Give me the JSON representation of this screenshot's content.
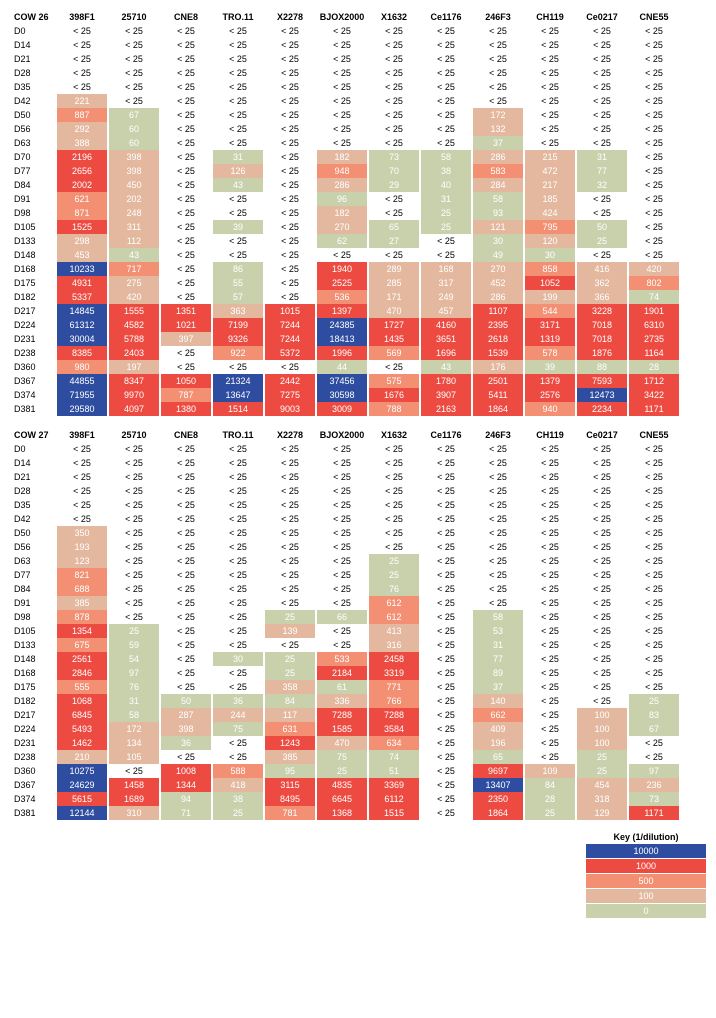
{
  "colors": {
    "band_10000": "#2e4da0",
    "band_1000": "#ed4b42",
    "band_500": "#f39074",
    "band_100": "#e4b89f",
    "band_0": "#c8d1ac",
    "plain_text": "#000000",
    "filled_text": "#ffffff",
    "background": "#ffffff"
  },
  "key": {
    "title": "Key (1/dilution)",
    "entries": [
      {
        "label": "10000",
        "color": "#2e4da0"
      },
      {
        "label": "1000",
        "color": "#ed4b42"
      },
      {
        "label": "500",
        "color": "#f39074"
      },
      {
        "label": "100",
        "color": "#e4b89f"
      },
      {
        "label": "0",
        "color": "#c8d1ac"
      }
    ]
  },
  "columns": [
    "398F1",
    "25710",
    "CNE8",
    "TRO.11",
    "X2278",
    "BJOX2000",
    "X1632",
    "Ce1176",
    "246F3",
    "CH119",
    "Ce0217",
    "CNE55"
  ],
  "tables": [
    {
      "title": "COW 26",
      "rows": [
        {
          "label": "D0",
          "cells": [
            null,
            null,
            null,
            null,
            null,
            null,
            null,
            null,
            null,
            null,
            null,
            null
          ]
        },
        {
          "label": "D14",
          "cells": [
            null,
            null,
            null,
            null,
            null,
            null,
            null,
            null,
            null,
            null,
            null,
            null
          ]
        },
        {
          "label": "D21",
          "cells": [
            null,
            null,
            null,
            null,
            null,
            null,
            null,
            null,
            null,
            null,
            null,
            null
          ]
        },
        {
          "label": "D28",
          "cells": [
            null,
            null,
            null,
            null,
            null,
            null,
            null,
            null,
            null,
            null,
            null,
            null
          ]
        },
        {
          "label": "D35",
          "cells": [
            null,
            null,
            null,
            null,
            null,
            null,
            null,
            null,
            null,
            null,
            null,
            null
          ]
        },
        {
          "label": "D42",
          "cells": [
            221,
            null,
            null,
            null,
            null,
            null,
            null,
            null,
            null,
            null,
            null,
            null
          ]
        },
        {
          "label": "D50",
          "cells": [
            887,
            67,
            null,
            null,
            null,
            null,
            null,
            null,
            172,
            null,
            null,
            null
          ]
        },
        {
          "label": "D56",
          "cells": [
            292,
            60,
            null,
            null,
            null,
            null,
            null,
            null,
            132,
            null,
            null,
            null
          ]
        },
        {
          "label": "D63",
          "cells": [
            388,
            60,
            null,
            null,
            null,
            null,
            null,
            null,
            37,
            null,
            null,
            null
          ]
        },
        {
          "label": "D70",
          "cells": [
            2196,
            398,
            null,
            31,
            null,
            182,
            73,
            58,
            286,
            215,
            31,
            null
          ]
        },
        {
          "label": "D77",
          "cells": [
            2656,
            398,
            null,
            126,
            null,
            948,
            70,
            38,
            583,
            472,
            77,
            null
          ]
        },
        {
          "label": "D84",
          "cells": [
            2002,
            450,
            null,
            43,
            null,
            286,
            29,
            40,
            284,
            217,
            32,
            null
          ]
        },
        {
          "label": "D91",
          "cells": [
            621,
            202,
            null,
            null,
            null,
            96,
            null,
            31,
            58,
            185,
            null,
            null
          ]
        },
        {
          "label": "D98",
          "cells": [
            871,
            248,
            null,
            null,
            null,
            182,
            null,
            25,
            93,
            424,
            null,
            null
          ]
        },
        {
          "label": "D105",
          "cells": [
            1525,
            311,
            null,
            39,
            null,
            270,
            65,
            25,
            121,
            795,
            50,
            null
          ]
        },
        {
          "label": "D133",
          "cells": [
            298,
            112,
            null,
            null,
            null,
            62,
            27,
            null,
            30,
            120,
            25,
            null
          ]
        },
        {
          "label": "D148",
          "cells": [
            453,
            43,
            null,
            null,
            null,
            null,
            null,
            null,
            49,
            30,
            null,
            null
          ]
        },
        {
          "label": "D168",
          "cells": [
            10233,
            717,
            null,
            86,
            null,
            1940,
            289,
            168,
            270,
            858,
            416,
            420
          ]
        },
        {
          "label": "D175",
          "cells": [
            4931,
            275,
            null,
            55,
            null,
            2525,
            285,
            317,
            452,
            1052,
            362,
            802
          ]
        },
        {
          "label": "D182",
          "cells": [
            5337,
            420,
            null,
            57,
            null,
            536,
            171,
            249,
            286,
            199,
            366,
            74
          ]
        },
        {
          "label": "D217",
          "cells": [
            14845,
            1555,
            1351,
            363,
            1015,
            1397,
            470,
            457,
            1107,
            544,
            3228,
            1901
          ]
        },
        {
          "label": "D224",
          "cells": [
            61312,
            4582,
            1021,
            7199,
            7244,
            24385,
            1727,
            4160,
            2395,
            3171,
            7018,
            6310
          ]
        },
        {
          "label": "D231",
          "cells": [
            30004,
            5788,
            397,
            9326,
            7244,
            18413,
            1435,
            3651,
            2618,
            1319,
            7018,
            2735
          ]
        },
        {
          "label": "D238",
          "cells": [
            8385,
            2403,
            null,
            922,
            5372,
            1996,
            569,
            1696,
            1539,
            578,
            1876,
            1164
          ]
        },
        {
          "label": "D360",
          "cells": [
            980,
            197,
            null,
            null,
            null,
            44,
            null,
            43,
            176,
            39,
            88,
            28
          ]
        },
        {
          "label": "D367",
          "cells": [
            44855,
            8347,
            1050,
            21324,
            2442,
            37456,
            575,
            1780,
            2501,
            1379,
            7593,
            1712
          ]
        },
        {
          "label": "D374",
          "cells": [
            71955,
            9970,
            787,
            13647,
            7275,
            30598,
            1676,
            3907,
            5411,
            2576,
            12473,
            3422
          ]
        },
        {
          "label": "D381",
          "cells": [
            29580,
            4097,
            1380,
            1514,
            9003,
            3009,
            788,
            2163,
            1864,
            940,
            2234,
            1171
          ]
        }
      ]
    },
    {
      "title": "COW 27",
      "rows": [
        {
          "label": "D0",
          "cells": [
            null,
            null,
            null,
            null,
            null,
            null,
            null,
            null,
            null,
            null,
            null,
            null
          ]
        },
        {
          "label": "D14",
          "cells": [
            null,
            null,
            null,
            null,
            null,
            null,
            null,
            null,
            null,
            null,
            null,
            null
          ]
        },
        {
          "label": "D21",
          "cells": [
            null,
            null,
            null,
            null,
            null,
            null,
            null,
            null,
            null,
            null,
            null,
            null
          ]
        },
        {
          "label": "D28",
          "cells": [
            null,
            null,
            null,
            null,
            null,
            null,
            null,
            null,
            null,
            null,
            null,
            null
          ]
        },
        {
          "label": "D35",
          "cells": [
            null,
            null,
            null,
            null,
            null,
            null,
            null,
            null,
            null,
            null,
            null,
            null
          ]
        },
        {
          "label": "D42",
          "cells": [
            null,
            null,
            null,
            null,
            null,
            null,
            null,
            null,
            null,
            null,
            null,
            null
          ]
        },
        {
          "label": "D50",
          "cells": [
            350,
            null,
            null,
            null,
            null,
            null,
            null,
            null,
            null,
            null,
            null,
            null
          ]
        },
        {
          "label": "D56",
          "cells": [
            193,
            null,
            null,
            null,
            null,
            null,
            null,
            null,
            null,
            null,
            null,
            null
          ]
        },
        {
          "label": "D63",
          "cells": [
            123,
            null,
            null,
            null,
            null,
            null,
            25,
            null,
            null,
            null,
            null,
            null
          ]
        },
        {
          "label": "D77",
          "cells": [
            821,
            null,
            null,
            null,
            null,
            null,
            25,
            null,
            null,
            null,
            null,
            null
          ]
        },
        {
          "label": "D84",
          "cells": [
            688,
            null,
            null,
            null,
            null,
            null,
            76,
            null,
            null,
            null,
            null,
            null
          ]
        },
        {
          "label": "D91",
          "cells": [
            385,
            null,
            null,
            null,
            null,
            null,
            612,
            null,
            null,
            null,
            null,
            null
          ]
        },
        {
          "label": "D98",
          "cells": [
            878,
            null,
            null,
            null,
            25,
            66,
            612,
            null,
            58,
            null,
            null,
            null
          ]
        },
        {
          "label": "D105",
          "cells": [
            1354,
            25,
            null,
            null,
            139,
            null,
            413,
            null,
            53,
            null,
            null,
            null
          ]
        },
        {
          "label": "D133",
          "cells": [
            675,
            59,
            null,
            null,
            null,
            null,
            316,
            null,
            31,
            null,
            null,
            null
          ]
        },
        {
          "label": "D148",
          "cells": [
            2561,
            54,
            null,
            30,
            25,
            533,
            2458,
            null,
            77,
            null,
            null,
            null
          ]
        },
        {
          "label": "D168",
          "cells": [
            2846,
            97,
            null,
            null,
            25,
            2184,
            3319,
            null,
            89,
            null,
            null,
            null
          ]
        },
        {
          "label": "D175",
          "cells": [
            555,
            76,
            null,
            null,
            358,
            61,
            771,
            null,
            37,
            null,
            null,
            null
          ]
        },
        {
          "label": "D182",
          "cells": [
            1068,
            31,
            50,
            36,
            84,
            336,
            766,
            null,
            140,
            null,
            null,
            25
          ]
        },
        {
          "label": "D217",
          "cells": [
            6845,
            58,
            287,
            244,
            117,
            7288,
            7288,
            null,
            662,
            null,
            100,
            83
          ]
        },
        {
          "label": "D224",
          "cells": [
            5493,
            172,
            398,
            75,
            631,
            1585,
            3584,
            null,
            409,
            null,
            100,
            67
          ]
        },
        {
          "label": "D231",
          "cells": [
            1462,
            134,
            36,
            null,
            1243,
            470,
            634,
            null,
            196,
            null,
            100,
            null
          ]
        },
        {
          "label": "D238",
          "cells": [
            210,
            105,
            null,
            null,
            385,
            75,
            74,
            null,
            65,
            null,
            25,
            null
          ]
        },
        {
          "label": "D360",
          "cells": [
            10275,
            null,
            1008,
            588,
            95,
            25,
            51,
            null,
            9697,
            109,
            25,
            97
          ]
        },
        {
          "label": "D367",
          "cells": [
            24629,
            1458,
            1344,
            418,
            3115,
            4835,
            3369,
            null,
            13407,
            84,
            454,
            236
          ]
        },
        {
          "label": "D374",
          "cells": [
            5615,
            1689,
            94,
            38,
            8495,
            6645,
            6112,
            null,
            2350,
            28,
            318,
            73
          ]
        },
        {
          "label": "D381",
          "cells": [
            12144,
            310,
            71,
            25,
            781,
            1368,
            1515,
            null,
            1864,
            25,
            129,
            1171
          ]
        }
      ]
    }
  ],
  "blank_label": "< 25"
}
